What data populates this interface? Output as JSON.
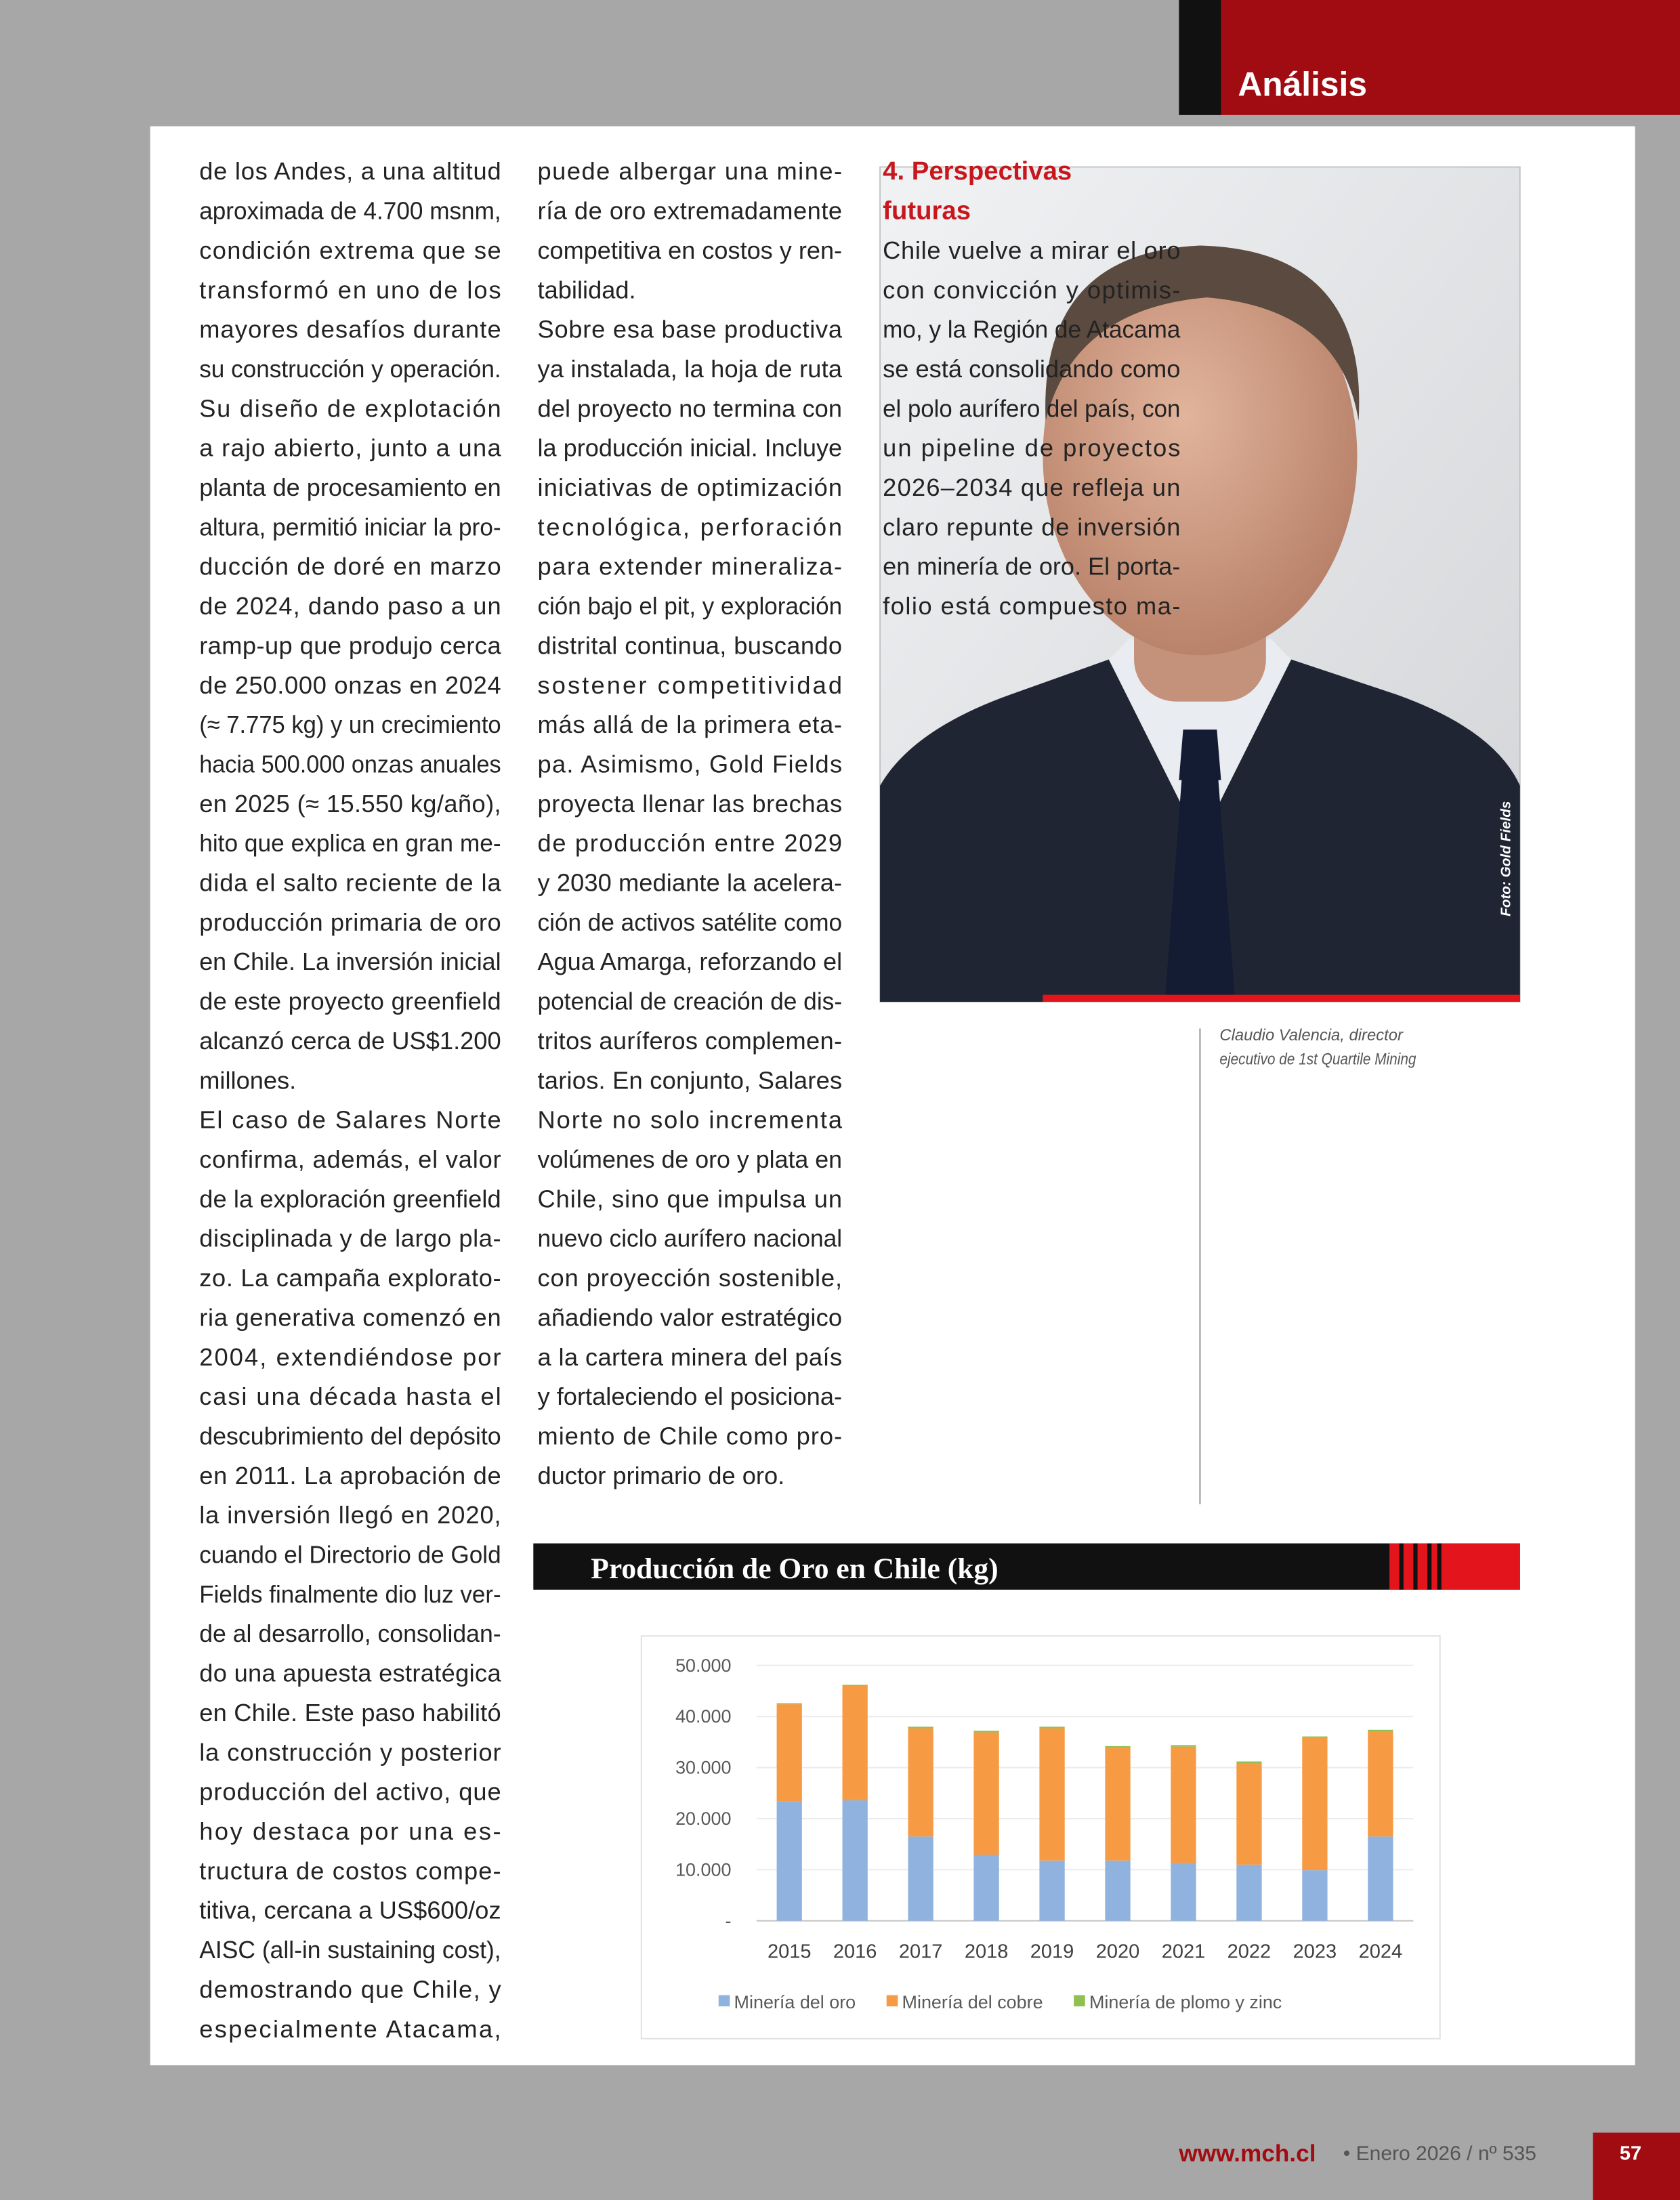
{
  "header": {
    "section": "Análisis"
  },
  "column_1": {
    "paragraphs": [
      [
        "de los Andes, a una altitud",
        "aproximada de 4.700 msnm,",
        "condición extrema que se",
        "transformó en uno de los",
        "mayores desafíos durante",
        "su construcción y operación."
      ],
      [
        "Su diseño de explotación",
        "a rajo abierto, junto a una",
        "planta de procesamiento en",
        "altura, permitió iniciar la pro-",
        "ducción de doré en marzo",
        "de 2024, dando paso a un",
        "ramp-up que produjo cerca",
        "de 250.000 onzas en 2024",
        "(≈ 7.775 kg) y un crecimiento",
        "hacia 500.000 onzas anuales",
        "en 2025 (≈ 15.550 kg/año),",
        "hito que explica en gran me-",
        "dida el salto reciente de la",
        "producción primaria de oro",
        "en Chile. La inversión inicial",
        "de este proyecto greenfield",
        "alcanzó cerca de US$1.200",
        "millones."
      ],
      [
        "El caso de Salares Norte",
        "confirma, además, el valor",
        "de la exploración greenfield",
        "disciplinada y de largo pla-",
        "zo. La campaña explorato-",
        "ria generativa comenzó en",
        "2004, extendiéndose por",
        "casi una década hasta el",
        "descubrimiento del depósito",
        "en 2011. La aprobación de",
        "la inversión llegó en 2020,",
        "cuando el Directorio de Gold",
        "Fields finalmente dio luz ver-",
        "de al desarrollo, consolidan-",
        "do una apuesta estratégica",
        "en Chile. Este paso habilitó",
        "la construcción y posterior",
        "producción del activo, que",
        "hoy destaca por una es-",
        "tructura de costos compe-",
        "titiva, cercana a US$600/oz",
        "AISC (all-in sustaining cost),",
        "demostrando que Chile, y",
        "especialmente Atacama,"
      ]
    ]
  },
  "column_2": {
    "paragraphs": [
      [
        "puede albergar una mine-",
        "ría de oro extremadamente",
        "competitiva en costos y ren-",
        "tabilidad."
      ],
      [
        "Sobre esa base productiva",
        "ya instalada, la hoja de ruta",
        "del proyecto no termina con",
        "la producción inicial. Incluye",
        "iniciativas de optimización",
        "tecnológica, perforación",
        "para extender mineraliza-",
        "ción bajo el pit, y exploración",
        "distrital continua, buscando",
        "sostener competitividad",
        "más allá de la primera eta-",
        "pa. Asimismo, Gold Fields",
        "proyecta llenar las brechas",
        "de producción entre 2029",
        "y 2030 mediante la acelera-",
        "ción de activos satélite como",
        "Agua Amarga, reforzando el",
        "potencial de creación de dis-",
        "tritos auríferos complemen-",
        "tarios. En conjunto, Salares",
        "Norte no solo incrementa",
        "volúmenes de oro y plata en",
        "Chile, sino que impulsa un",
        "nuevo ciclo aurífero nacional",
        "con proyección sostenible,",
        "añadiendo valor estratégico",
        "a la cartera minera del país",
        "y fortaleciendo el posiciona-",
        "miento de Chile como pro-",
        "ductor primario de oro."
      ]
    ]
  },
  "column_3": {
    "heading": [
      "4. Perspectivas",
      "futuras"
    ],
    "paragraphs": [
      [
        "Chile vuelve a mirar el oro",
        "con convicción y optimis-",
        "mo, y la Región de Atacama",
        "se está consolidando como",
        "el polo aurífero del país, con",
        "un pipeline de proyectos",
        "2026–2034 que refleja un",
        "claro repunte de inversión",
        "en minería de oro. El porta-",
        "folio está compuesto ma-"
      ]
    ]
  },
  "photo": {
    "credit": "Foto: Gold Fields",
    "caption": [
      "Claudio Valencia, director",
      "ejecutivo de 1st Quartile Mining"
    ]
  },
  "chart_data": {
    "type": "bar",
    "stacked": true,
    "title": "Producción de Oro en Chile (kg)",
    "categories": [
      "2015",
      "2016",
      "2017",
      "2018",
      "2019",
      "2020",
      "2021",
      "2022",
      "2023",
      "2024"
    ],
    "series": [
      {
        "name": "Minería del oro",
        "color": "#8fb3de",
        "values": [
          23400,
          23600,
          16500,
          12900,
          11800,
          11800,
          11300,
          11000,
          9900,
          16500
        ]
      },
      {
        "name": "Minería del cobre",
        "color": "#f79a44",
        "values": [
          19000,
          22400,
          21200,
          24000,
          25900,
          22100,
          22800,
          19800,
          25900,
          20600
        ]
      },
      {
        "name": "Minería de plomo y zinc",
        "color": "#92c050",
        "values": [
          200,
          200,
          300,
          300,
          300,
          300,
          300,
          400,
          300,
          300
        ]
      }
    ],
    "ylim": [
      0,
      50000
    ],
    "yticks": [
      {
        "value": 0,
        "label": "-"
      },
      {
        "value": 10000,
        "label": "10.000"
      },
      {
        "value": 20000,
        "label": "20.000"
      },
      {
        "value": 30000,
        "label": "30.000"
      },
      {
        "value": 40000,
        "label": "40.000"
      },
      {
        "value": 50000,
        "label": "50.000"
      }
    ],
    "grid": true,
    "legend": "bottom"
  },
  "footer": {
    "site": "www.mch.cl",
    "issue": "• Enero 2026 / nº 535",
    "page": "57"
  }
}
